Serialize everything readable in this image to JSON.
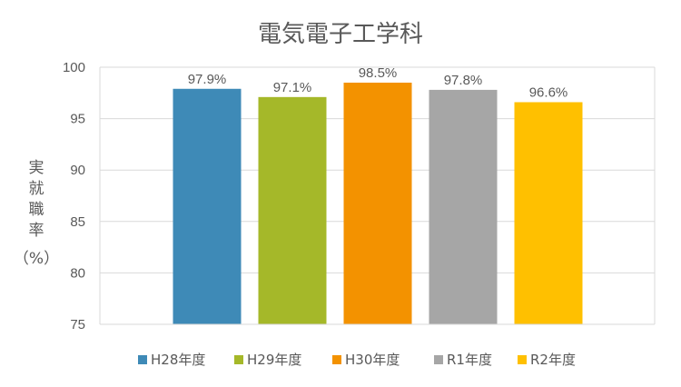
{
  "chart_data": {
    "type": "bar",
    "title": "電気電子工学科",
    "ylabel_chars": [
      "実",
      "就",
      "職",
      "率"
    ],
    "ylabel_unit": "（%）",
    "xlabel": "",
    "ylim": [
      75,
      100
    ],
    "yticks": [
      75,
      80,
      85,
      90,
      95,
      100
    ],
    "grid": true,
    "legend_position": "bottom",
    "series": [
      {
        "name": "H28年度",
        "value": 97.9,
        "label": "97.9%",
        "color": "#3E8AB7"
      },
      {
        "name": "H29年度",
        "value": 97.1,
        "label": "97.1%",
        "color": "#A5B829"
      },
      {
        "name": "H30年度",
        "value": 98.5,
        "label": "98.5%",
        "color": "#F39200"
      },
      {
        "name": "R1年度",
        "value": 97.8,
        "label": "97.8%",
        "color": "#A6A6A6"
      },
      {
        "name": "R2年度",
        "value": 96.6,
        "label": "96.6%",
        "color": "#FFC000"
      }
    ]
  }
}
